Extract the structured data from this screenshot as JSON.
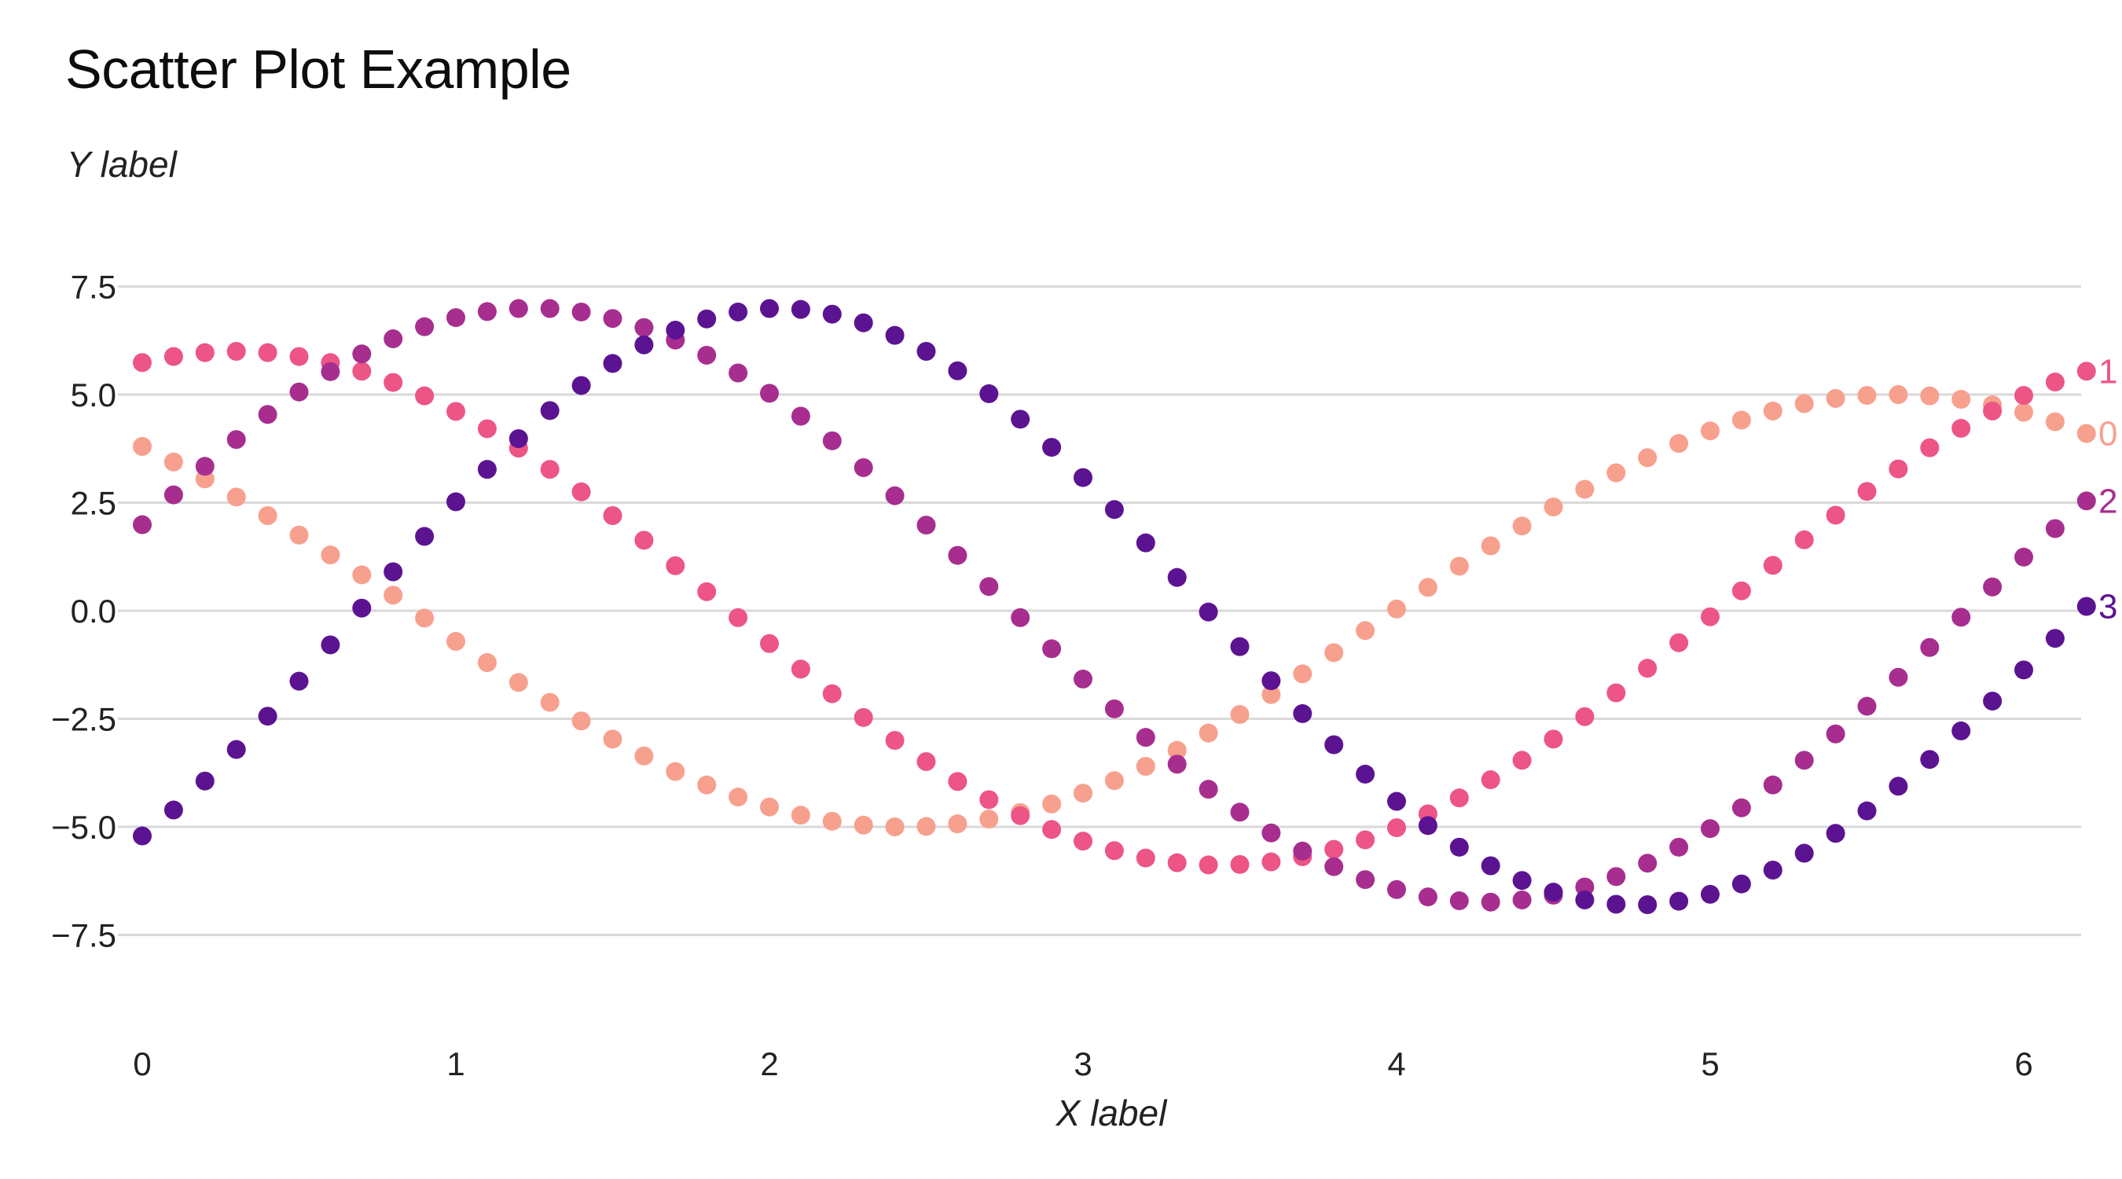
{
  "chart_data": {
    "type": "scatter",
    "title": "Scatter Plot Example",
    "xlabel": "X label",
    "ylabel": "Y label",
    "xlim": [
      0,
      6.2
    ],
    "ylim": [
      -9.5,
      8.0
    ],
    "x_ticks": [
      {
        "value": 0,
        "label": "0"
      },
      {
        "value": 1,
        "label": "1"
      },
      {
        "value": 2,
        "label": "2"
      },
      {
        "value": 3,
        "label": "3"
      },
      {
        "value": 4,
        "label": "4"
      },
      {
        "value": 5,
        "label": "5"
      },
      {
        "value": 6,
        "label": "6"
      }
    ],
    "y_ticks": [
      {
        "value": 7.5,
        "label": "7.5"
      },
      {
        "value": 5.0,
        "label": "5.0"
      },
      {
        "value": 2.5,
        "label": "2.5"
      },
      {
        "value": 0.0,
        "label": "0.0"
      },
      {
        "value": -2.5,
        "label": "−2.5"
      },
      {
        "value": -5.0,
        "label": "−5.0"
      },
      {
        "value": -7.5,
        "label": "−7.5"
      }
    ],
    "grid": "horizontal",
    "legend": "direct labels at right end of each series",
    "x": [
      0.0,
      0.1,
      0.2,
      0.3,
      0.4,
      0.5,
      0.6,
      0.7,
      0.8,
      0.9,
      1.0,
      1.1,
      1.2,
      1.3,
      1.4,
      1.5,
      1.6,
      1.7,
      1.8,
      1.9,
      2.0,
      2.1,
      2.2,
      2.3,
      2.4,
      2.5,
      2.6,
      2.7,
      2.8,
      2.9,
      3.0,
      3.1,
      3.2,
      3.3,
      3.4,
      3.5,
      3.6,
      3.7,
      3.8,
      3.9,
      4.0,
      4.1,
      4.2,
      4.3,
      4.4,
      4.5,
      4.6,
      4.7,
      4.8,
      4.9,
      5.0,
      5.1,
      5.2,
      5.3,
      5.4,
      5.5,
      5.6,
      5.7,
      5.8,
      5.9,
      6.0,
      6.1,
      6.2
    ],
    "series": [
      {
        "name": "0",
        "color": "#f7a08e",
        "values": [
          3.8,
          3.44,
          3.05,
          2.63,
          2.2,
          1.75,
          1.29,
          0.83,
          0.36,
          -0.17,
          -0.71,
          -1.2,
          -1.66,
          -2.12,
          -2.55,
          -2.97,
          -3.36,
          -3.72,
          -4.03,
          -4.31,
          -4.54,
          -4.73,
          -4.87,
          -4.96,
          -5.0,
          -4.99,
          -4.93,
          -4.82,
          -4.67,
          -4.47,
          -4.22,
          -3.93,
          -3.6,
          -3.23,
          -2.83,
          -2.4,
          -1.94,
          -1.46,
          -0.97,
          -0.46,
          0.04,
          0.54,
          1.03,
          1.5,
          1.96,
          2.4,
          2.81,
          3.19,
          3.54,
          3.87,
          4.16,
          4.41,
          4.62,
          4.79,
          4.91,
          4.98,
          5.0,
          4.97,
          4.89,
          4.76,
          4.59,
          4.37,
          4.1
        ]
      },
      {
        "name": "1",
        "color": "#ec5585",
        "values": [
          5.74,
          5.88,
          5.97,
          6.0,
          5.97,
          5.88,
          5.74,
          5.54,
          5.28,
          4.97,
          4.61,
          4.21,
          3.76,
          3.27,
          2.75,
          2.2,
          1.63,
          1.04,
          0.44,
          -0.16,
          -0.76,
          -1.35,
          -1.92,
          -2.47,
          -3.0,
          -3.49,
          -3.95,
          -4.37,
          -4.74,
          -5.06,
          -5.33,
          -5.55,
          -5.72,
          -5.83,
          -5.88,
          -5.87,
          -5.81,
          -5.69,
          -5.52,
          -5.3,
          -5.02,
          -4.7,
          -4.33,
          -3.91,
          -3.46,
          -2.97,
          -2.45,
          -1.9,
          -1.33,
          -0.74,
          -0.14,
          0.46,
          1.05,
          1.64,
          2.21,
          2.76,
          3.28,
          3.77,
          4.22,
          4.62,
          4.98,
          5.29,
          5.54
        ]
      },
      {
        "name": "2",
        "color": "#a72e8f",
        "values": [
          1.99,
          2.68,
          3.34,
          3.96,
          4.54,
          5.06,
          5.53,
          5.94,
          6.29,
          6.57,
          6.78,
          6.92,
          6.99,
          6.99,
          6.91,
          6.76,
          6.55,
          6.26,
          5.91,
          5.5,
          5.03,
          4.5,
          3.93,
          3.31,
          2.66,
          1.98,
          1.28,
          0.56,
          -0.16,
          -0.88,
          -1.58,
          -2.27,
          -2.93,
          -3.55,
          -4.13,
          -4.66,
          -5.14,
          -5.56,
          -5.92,
          -6.22,
          -6.45,
          -6.62,
          -6.71,
          -6.74,
          -6.69,
          -6.58,
          -6.39,
          -6.15,
          -5.84,
          -5.47,
          -5.04,
          -4.56,
          -4.03,
          -3.46,
          -2.85,
          -2.21,
          -1.54,
          -0.85,
          -0.15,
          0.55,
          1.24,
          1.9,
          2.54
        ]
      },
      {
        "name": "3",
        "color": "#5c1392",
        "values": [
          -5.21,
          -4.61,
          -3.94,
          -3.21,
          -2.44,
          -1.63,
          -0.79,
          0.06,
          0.9,
          1.72,
          2.52,
          3.27,
          3.98,
          4.63,
          5.21,
          5.72,
          6.15,
          6.49,
          6.75,
          6.91,
          6.99,
          6.97,
          6.86,
          6.66,
          6.37,
          6.0,
          5.55,
          5.02,
          4.43,
          3.78,
          3.08,
          2.34,
          1.57,
          0.77,
          -0.03,
          -0.83,
          -1.62,
          -2.38,
          -3.1,
          -3.78,
          -4.41,
          -4.97,
          -5.47,
          -5.9,
          -6.24,
          -6.51,
          -6.69,
          -6.79,
          -6.8,
          -6.72,
          -6.56,
          -6.32,
          -6.0,
          -5.61,
          -5.15,
          -4.63,
          -4.06,
          -3.44,
          -2.78,
          -2.09,
          -1.37,
          -0.64,
          0.1
        ]
      }
    ]
  }
}
